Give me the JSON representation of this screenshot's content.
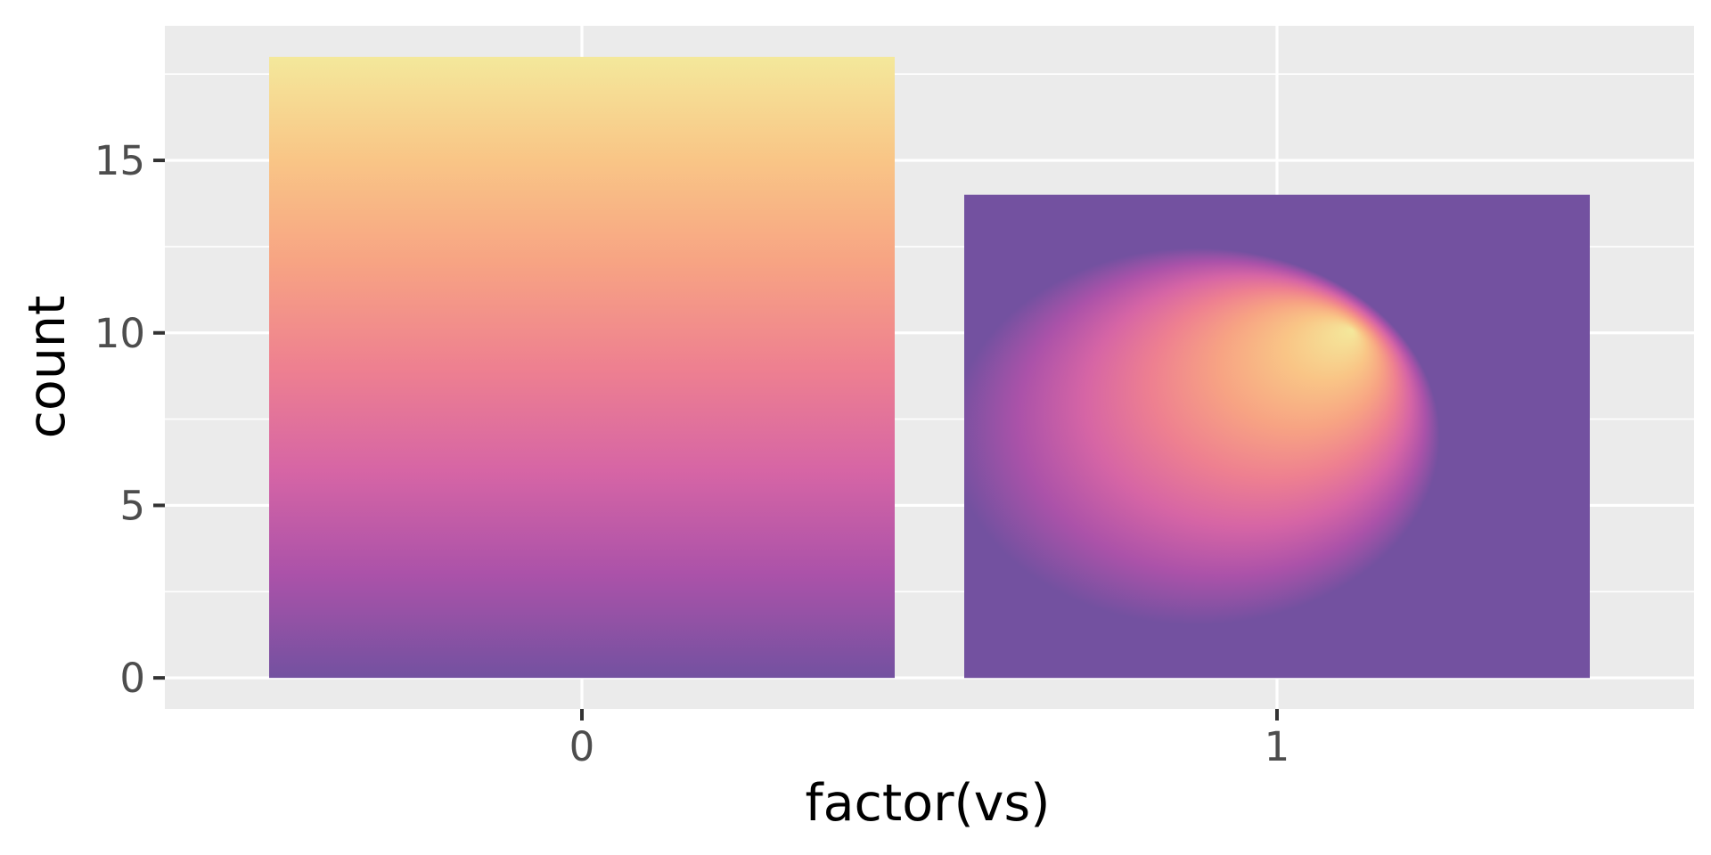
{
  "chart_data": {
    "type": "bar",
    "xlabel": "factor(vs)",
    "ylabel": "count",
    "categories": [
      "0",
      "1"
    ],
    "values": [
      18,
      14
    ],
    "ylim": [
      -0.9,
      18.9
    ],
    "y_ticks": [
      0,
      5,
      10,
      15
    ],
    "y_ticks_labels": [
      "0",
      "5",
      "10",
      "15"
    ],
    "y_minor_ticks": [
      2.5,
      7.5,
      12.5,
      17.5
    ],
    "grid": true,
    "legend": "none",
    "fills": [
      {
        "kind": "linear-vertical",
        "stops": [
          "#7351a0",
          "#ab52a9",
          "#d665a5",
          "#ee8090",
          "#f7a383",
          "#f9c586",
          "#f4e89b"
        ]
      },
      {
        "kind": "radial",
        "background": "#764fa0",
        "stops": [
          "#f4e89b",
          "#f9c586",
          "#f7a383",
          "#ee8090",
          "#d665a5",
          "#ab52a9",
          "#7351a0"
        ]
      }
    ],
    "colors": {
      "panel_background": "#ebebeb",
      "grid_line": "#ffffff",
      "tick_mark": "#333333",
      "tick_text": "#4d4d4d",
      "title_text": "#000000"
    }
  }
}
